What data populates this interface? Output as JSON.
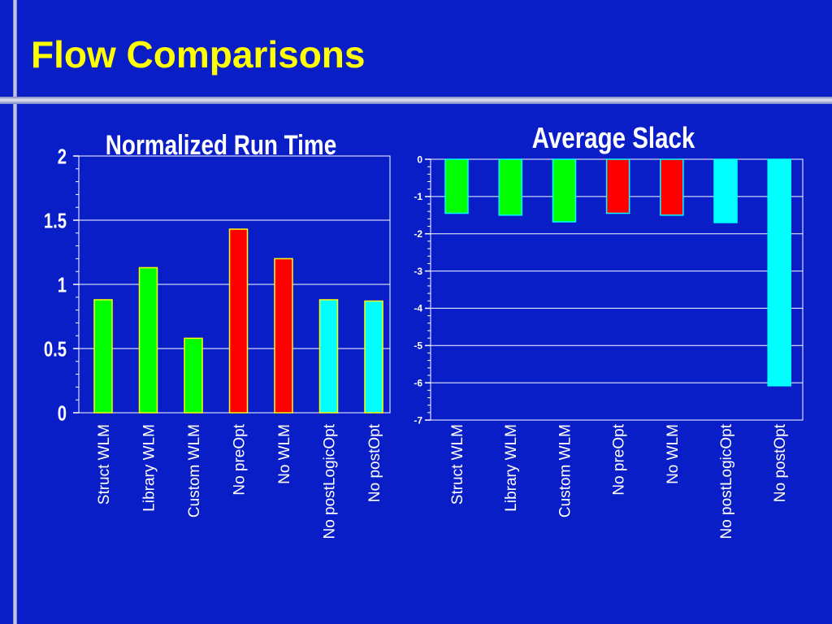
{
  "slide": {
    "title": "Flow Comparisons",
    "background_color": "#0a1ec8",
    "title_color": "#ffff00"
  },
  "chart_data": [
    {
      "type": "bar",
      "title": "Normalized Run Time",
      "categories": [
        "Struct WLM",
        "Library WLM",
        "Custom WLM",
        "No preOpt",
        "No WLM",
        "No postLogicOpt",
        "No postOpt"
      ],
      "values": [
        0.88,
        1.13,
        0.58,
        1.43,
        1.2,
        0.88,
        0.87
      ],
      "colors": [
        "#00ff00",
        "#00ff00",
        "#00ff00",
        "#ff0000",
        "#ff0000",
        "#00ffff",
        "#00ffff"
      ],
      "bar_outline": "#ffff00",
      "ylim": [
        0,
        2
      ],
      "yticks": [
        0,
        0.5,
        1,
        1.5,
        2
      ],
      "ytick_labels": [
        "0",
        "0.5",
        "1",
        "1.5",
        "2"
      ],
      "grid": true,
      "legend": "none"
    },
    {
      "type": "bar",
      "title": "Average Slack",
      "categories": [
        "Struct WLM",
        "Library WLM",
        "Custom WLM",
        "No preOpt",
        "No WLM",
        "No postLogicOpt",
        "No postOpt"
      ],
      "values": [
        -1.45,
        -1.5,
        -1.68,
        -1.45,
        -1.5,
        -1.7,
        -6.08
      ],
      "colors": [
        "#00ff00",
        "#00ff00",
        "#00ff00",
        "#ff0000",
        "#ff0000",
        "#00ffff",
        "#00ffff"
      ],
      "bar_outline": "#00ffff",
      "ylim": [
        -7,
        0
      ],
      "yticks": [
        0,
        -1,
        -2,
        -3,
        -4,
        -5,
        -6,
        -7
      ],
      "ytick_labels": [
        "0",
        "-1",
        "-2",
        "-3",
        "-4",
        "-5",
        "-6",
        "-7"
      ],
      "grid": true,
      "legend": "none"
    }
  ]
}
